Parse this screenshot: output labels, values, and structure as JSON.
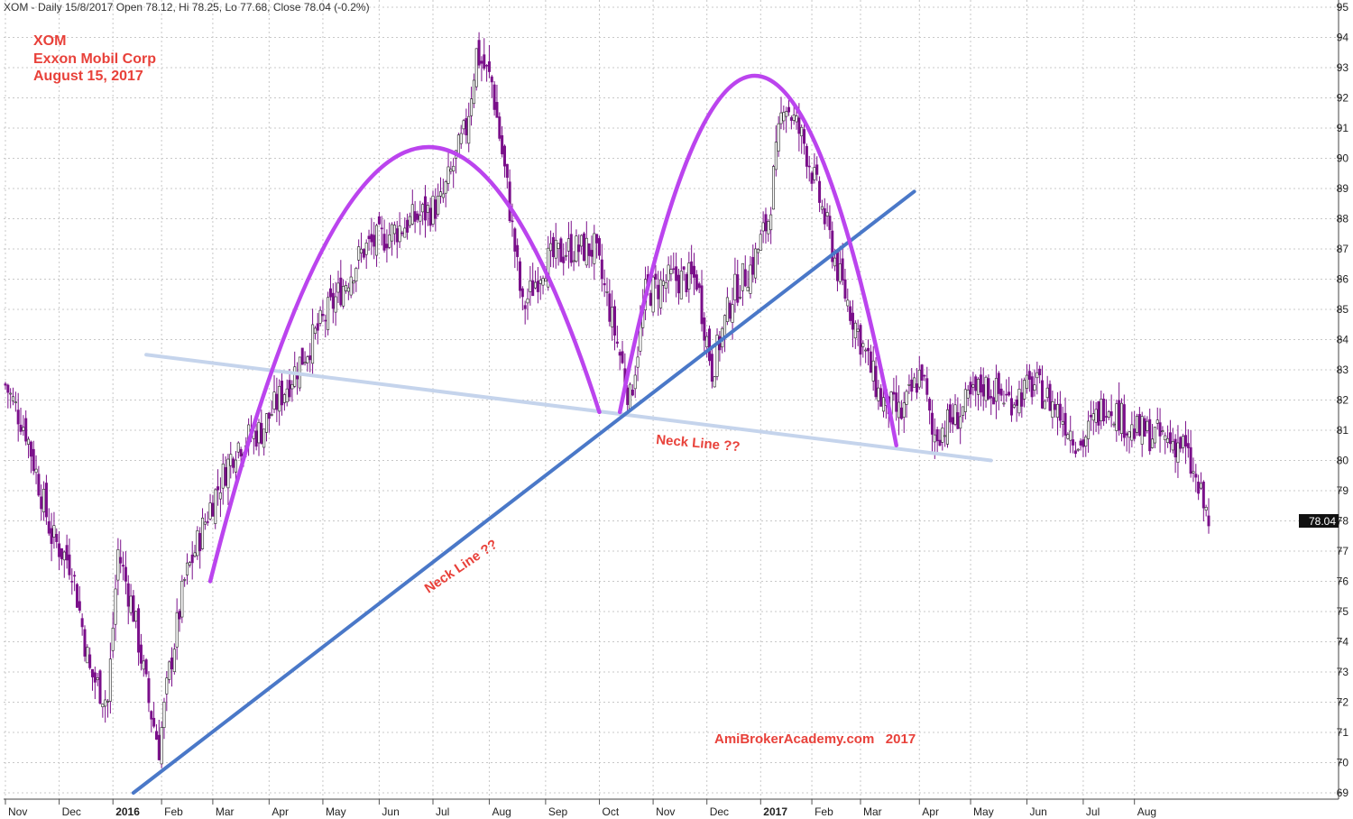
{
  "header": "XOM - Daily 15/8/2017 Open 78.12, Hi 78.25, Lo 77.68, Close 78.04 (-0.2%)",
  "title_lines": [
    "XOM",
    "Exxon Mobil Corp",
    "August 15, 2017"
  ],
  "watermark": "AmiBrokerAcademy.com   2017",
  "annotations": {
    "neck_line_horizontal": "Neck Line ??",
    "neck_line_diagonal": "Neck Line ??"
  },
  "colors": {
    "candles": "#7a0f8a",
    "arcs": "#bb44ee",
    "neck_light": "#c5d4ec",
    "neck_blue": "#4a78c8",
    "annotation_text": "#e8413a",
    "grid": "#c8c8c8"
  },
  "chart_data": {
    "type": "candlestick",
    "last_close_label": "78.04",
    "y_ticks": [
      69,
      70,
      71,
      72,
      73,
      74,
      75,
      76,
      77,
      78,
      79,
      80,
      81,
      82,
      83,
      84,
      85,
      86,
      87,
      88,
      89,
      90,
      91,
      92,
      93,
      94,
      95
    ],
    "ylim": [
      69,
      95
    ],
    "x_labels": [
      {
        "label": "Nov",
        "bold": false
      },
      {
        "label": "Dec",
        "bold": false
      },
      {
        "label": "2016",
        "bold": true
      },
      {
        "label": "Feb",
        "bold": false
      },
      {
        "label": "Mar",
        "bold": false
      },
      {
        "label": "Apr",
        "bold": false
      },
      {
        "label": "May",
        "bold": false
      },
      {
        "label": "Jun",
        "bold": false
      },
      {
        "label": "Jul",
        "bold": false
      },
      {
        "label": "Aug",
        "bold": false
      },
      {
        "label": "Sep",
        "bold": false
      },
      {
        "label": "Oct",
        "bold": false
      },
      {
        "label": "Nov",
        "bold": false
      },
      {
        "label": "Dec",
        "bold": false
      },
      {
        "label": "2017",
        "bold": true
      },
      {
        "label": "Feb",
        "bold": false
      },
      {
        "label": "Mar",
        "bold": false
      },
      {
        "label": "Apr",
        "bold": false
      },
      {
        "label": "May",
        "bold": false
      },
      {
        "label": "Jun",
        "bold": false
      },
      {
        "label": "Jul",
        "bold": false
      },
      {
        "label": "Aug",
        "bold": false
      }
    ],
    "close_path": [
      [
        0,
        82.5
      ],
      [
        8,
        81.0
      ],
      [
        18,
        77.5
      ],
      [
        26,
        76.5
      ],
      [
        33,
        73.0
      ],
      [
        40,
        72.0
      ],
      [
        44,
        77.0
      ],
      [
        50,
        75.0
      ],
      [
        56,
        72.0
      ],
      [
        60,
        70.5
      ],
      [
        64,
        73.0
      ],
      [
        70,
        76.0
      ],
      [
        80,
        78.5
      ],
      [
        90,
        80.5
      ],
      [
        100,
        81.0
      ],
      [
        110,
        82.5
      ],
      [
        120,
        84.0
      ],
      [
        130,
        85.5
      ],
      [
        140,
        87.0
      ],
      [
        150,
        87.5
      ],
      [
        160,
        88.0
      ],
      [
        170,
        88.5
      ],
      [
        180,
        91.0
      ],
      [
        184,
        93.5
      ],
      [
        190,
        92.5
      ],
      [
        196,
        89.0
      ],
      [
        202,
        85.0
      ],
      [
        210,
        86.5
      ],
      [
        220,
        87.0
      ],
      [
        230,
        87.0
      ],
      [
        236,
        85.0
      ],
      [
        244,
        82.0
      ],
      [
        250,
        85.5
      ],
      [
        260,
        86.0
      ],
      [
        270,
        86.0
      ],
      [
        276,
        83.0
      ],
      [
        284,
        85.5
      ],
      [
        292,
        86.5
      ],
      [
        298,
        88.0
      ],
      [
        304,
        92.0
      ],
      [
        312,
        90.5
      ],
      [
        320,
        88.0
      ],
      [
        326,
        86.0
      ],
      [
        334,
        84.0
      ],
      [
        342,
        82.0
      ],
      [
        350,
        81.5
      ],
      [
        358,
        83.0
      ],
      [
        362,
        80.8
      ],
      [
        372,
        81.5
      ],
      [
        382,
        82.5
      ],
      [
        392,
        82.0
      ],
      [
        402,
        82.5
      ],
      [
        410,
        81.8
      ],
      [
        420,
        80.5
      ],
      [
        430,
        82.0
      ],
      [
        440,
        81.0
      ],
      [
        450,
        80.8
      ],
      [
        460,
        80.5
      ],
      [
        464,
        79.5
      ],
      [
        470,
        78.0
      ]
    ],
    "arcs": [
      {
        "start": [
          80,
          76.0
        ],
        "control": [
          156,
          101.6
        ],
        "end": [
          232,
          81.6
        ]
      },
      {
        "start": [
          240,
          81.6
        ],
        "control": [
          294,
          104.4
        ],
        "end": [
          348,
          80.5
        ]
      }
    ],
    "neck_lines": [
      {
        "from": [
          55,
          83.5
        ],
        "to": [
          385,
          80.0
        ]
      },
      {
        "from": [
          50,
          69.0
        ],
        "to": [
          355,
          88.9
        ]
      }
    ]
  }
}
